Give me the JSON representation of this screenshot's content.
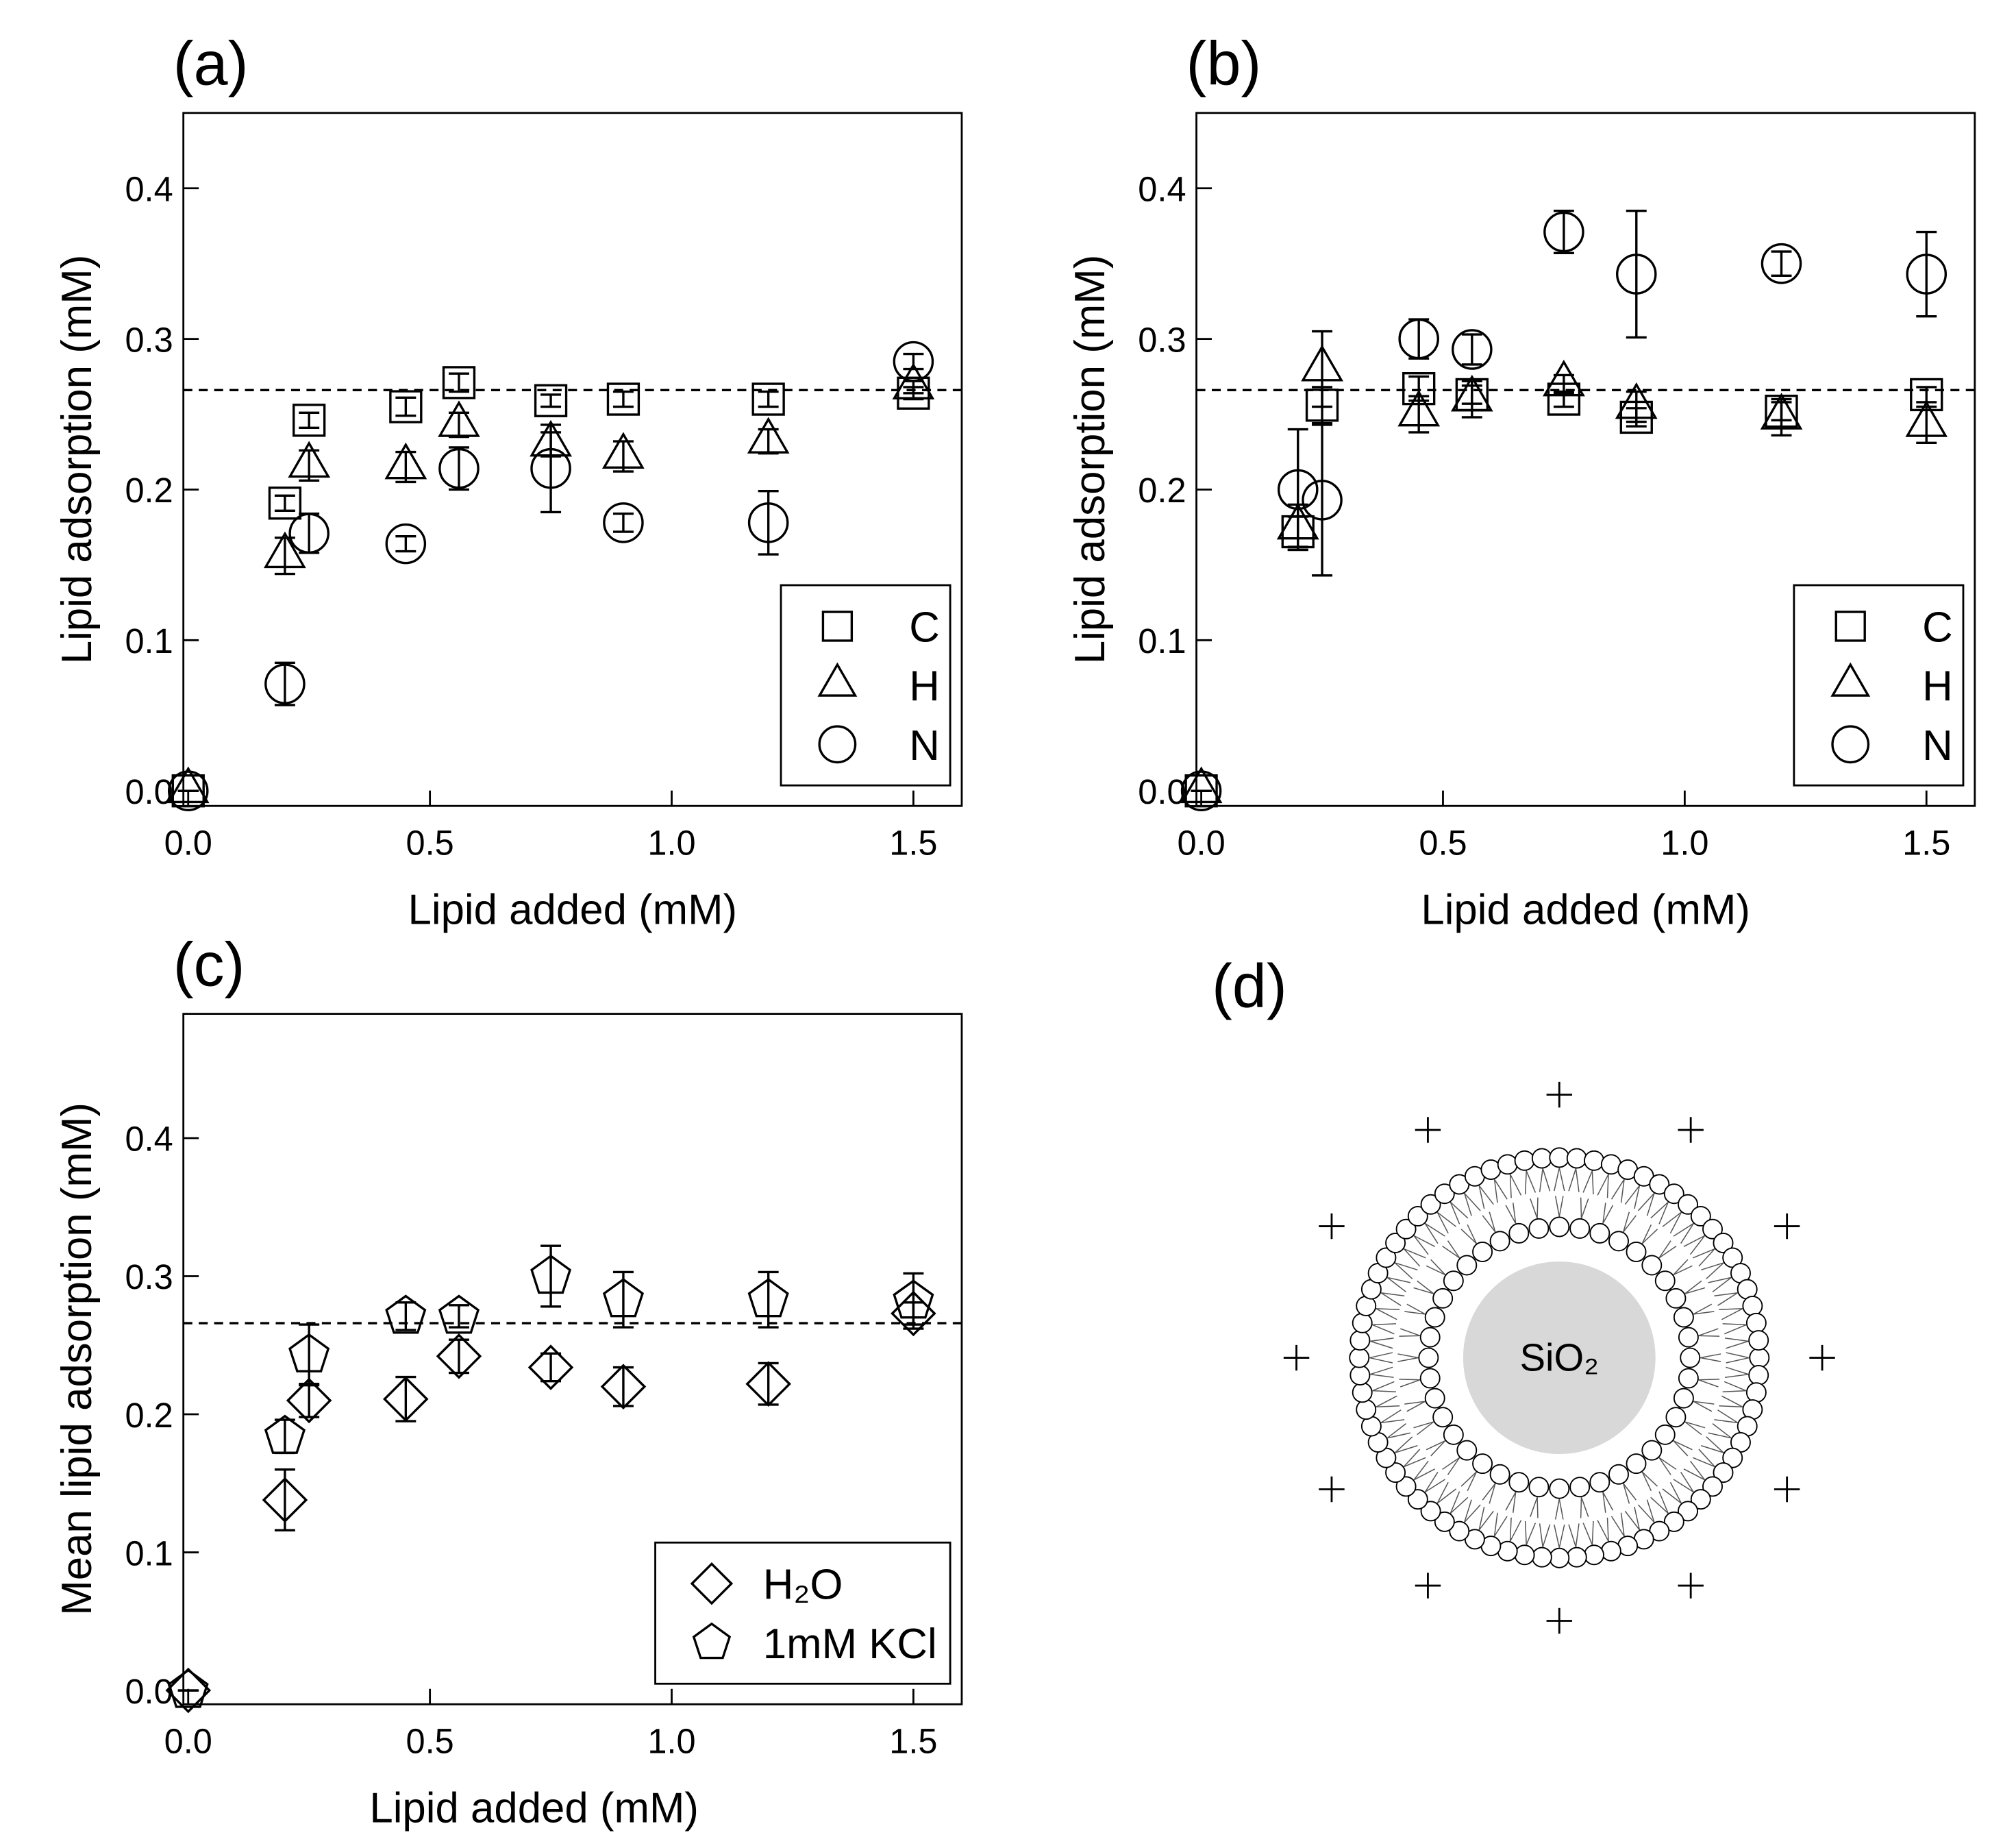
{
  "chart_data": [
    {
      "type": "scatter",
      "title": "(a)",
      "xlabel": "Lipid added (mM)",
      "ylabel": "Lipid adsorption (mM)",
      "x": [
        0,
        0.2,
        0.25,
        0.45,
        0.56,
        0.75,
        0.9,
        1.2,
        1.5
      ],
      "xlim": [
        -0.01,
        1.6
      ],
      "ylim": [
        -0.01,
        0.45
      ],
      "xticks": [
        {
          "value": 0,
          "label": "0.0"
        },
        0.5,
        {
          "value": 1,
          "label": "1.0"
        },
        1.5
      ],
      "yticks": [
        {
          "value": 0,
          "label": "0.0"
        },
        0.1,
        0.2,
        0.3,
        0.4
      ],
      "hline": 0.266,
      "legend": "lower right",
      "series": [
        {
          "name": "C",
          "marker": "square",
          "color": "#000000",
          "values": [
            0,
            0.191,
            0.246,
            0.255,
            0.271,
            0.259,
            0.26,
            0.26,
            0.264
          ],
          "errors": [
            0,
            0.005,
            0.005,
            0.006,
            0.006,
            0.004,
            0.005,
            0.005,
            0.004
          ]
        },
        {
          "name": "H",
          "marker": "triangle",
          "color": "#000000",
          "values": [
            0,
            0.156,
            0.216,
            0.215,
            0.243,
            0.23,
            0.222,
            0.232,
            0.268
          ],
          "errors": [
            0,
            0.012,
            0.01,
            0.01,
            0.008,
            0.008,
            0.01,
            0.008,
            0.004
          ]
        },
        {
          "name": "N",
          "marker": "circle",
          "color": "#000000",
          "values": [
            0,
            0.071,
            0.171,
            0.164,
            0.214,
            0.214,
            0.178,
            0.178,
            0.285
          ],
          "errors": [
            0,
            0.014,
            0.013,
            0.005,
            0.014,
            0.029,
            0.006,
            0.021,
            0.005
          ]
        }
      ]
    },
    {
      "type": "scatter",
      "title": "(b)",
      "xlabel": "Lipid added (mM)",
      "ylabel": "Lipid adsorption (mM)",
      "x": [
        0,
        0.2,
        0.25,
        0.45,
        0.56,
        0.75,
        0.9,
        1.2,
        1.5
      ],
      "xlim": [
        -0.01,
        1.6
      ],
      "ylim": [
        -0.01,
        0.45
      ],
      "xticks": [
        {
          "value": 0,
          "label": "0.0"
        },
        0.5,
        {
          "value": 1,
          "label": "1.0"
        },
        1.5
      ],
      "yticks": [
        {
          "value": 0,
          "label": "0.0"
        },
        0.1,
        0.2,
        0.3,
        0.4
      ],
      "hline": 0.266,
      "legend": "lower right",
      "series": [
        {
          "name": "C",
          "marker": "square",
          "color": "#000000",
          "values": [
            0,
            0.172,
            0.256,
            0.267,
            0.263,
            0.26,
            0.248,
            0.252,
            0.263
          ],
          "errors": [
            0,
            0.01,
            0.012,
            0.008,
            0.006,
            0.005,
            0.006,
            0.006,
            0.005
          ]
        },
        {
          "name": "H",
          "marker": "triangle",
          "color": "#000000",
          "values": [
            0,
            0.175,
            0.28,
            0.25,
            0.26,
            0.27,
            0.255,
            0.248,
            0.243
          ],
          "errors": [
            0,
            0.015,
            0.025,
            0.012,
            0.012,
            0.006,
            0.01,
            0.012,
            0.012
          ]
        },
        {
          "name": "N",
          "marker": "circle",
          "color": "#000000",
          "values": [
            0,
            0.2,
            0.193,
            0.3,
            0.293,
            0.371,
            0.343,
            0.35,
            0.343
          ],
          "errors": [
            0,
            0.04,
            0.05,
            0.013,
            0.01,
            0.014,
            0.042,
            0.008,
            0.028
          ]
        }
      ]
    },
    {
      "type": "scatter",
      "title": "(c)",
      "xlabel": "Lipid added (mM)",
      "ylabel": "Mean lipid adsorption (mM)",
      "x": [
        0,
        0.2,
        0.25,
        0.45,
        0.56,
        0.75,
        0.9,
        1.2,
        1.5
      ],
      "xlim": [
        -0.01,
        1.6
      ],
      "ylim": [
        -0.01,
        0.49
      ],
      "xticks": [
        {
          "value": 0,
          "label": "0.0"
        },
        0.5,
        {
          "value": 1,
          "label": "1.0"
        },
        1.5
      ],
      "yticks": [
        {
          "value": 0,
          "label": "0.0"
        },
        0.1,
        0.2,
        0.3,
        0.4
      ],
      "hline": 0.266,
      "legend": "lower right",
      "series": [
        {
          "name": "H₂O",
          "marker": "diamond",
          "color": "#000000",
          "values": [
            0,
            0.138,
            0.21,
            0.211,
            0.242,
            0.234,
            0.22,
            0.222,
            0.273
          ],
          "errors": [
            0,
            0.022,
            0.012,
            0.016,
            0.012,
            0.01,
            0.014,
            0.015,
            0.008
          ]
        },
        {
          "name": "1mM KCl",
          "marker": "pentagon",
          "color": "#000000",
          "values": [
            0,
            0.184,
            0.243,
            0.271,
            0.271,
            0.3,
            0.283,
            0.283,
            0.282
          ],
          "errors": [
            0,
            0.012,
            0.022,
            0.01,
            0.008,
            0.022,
            0.02,
            0.02,
            0.02
          ]
        }
      ]
    }
  ],
  "diagram": {
    "label": "(d)",
    "core": "SiO₂"
  }
}
